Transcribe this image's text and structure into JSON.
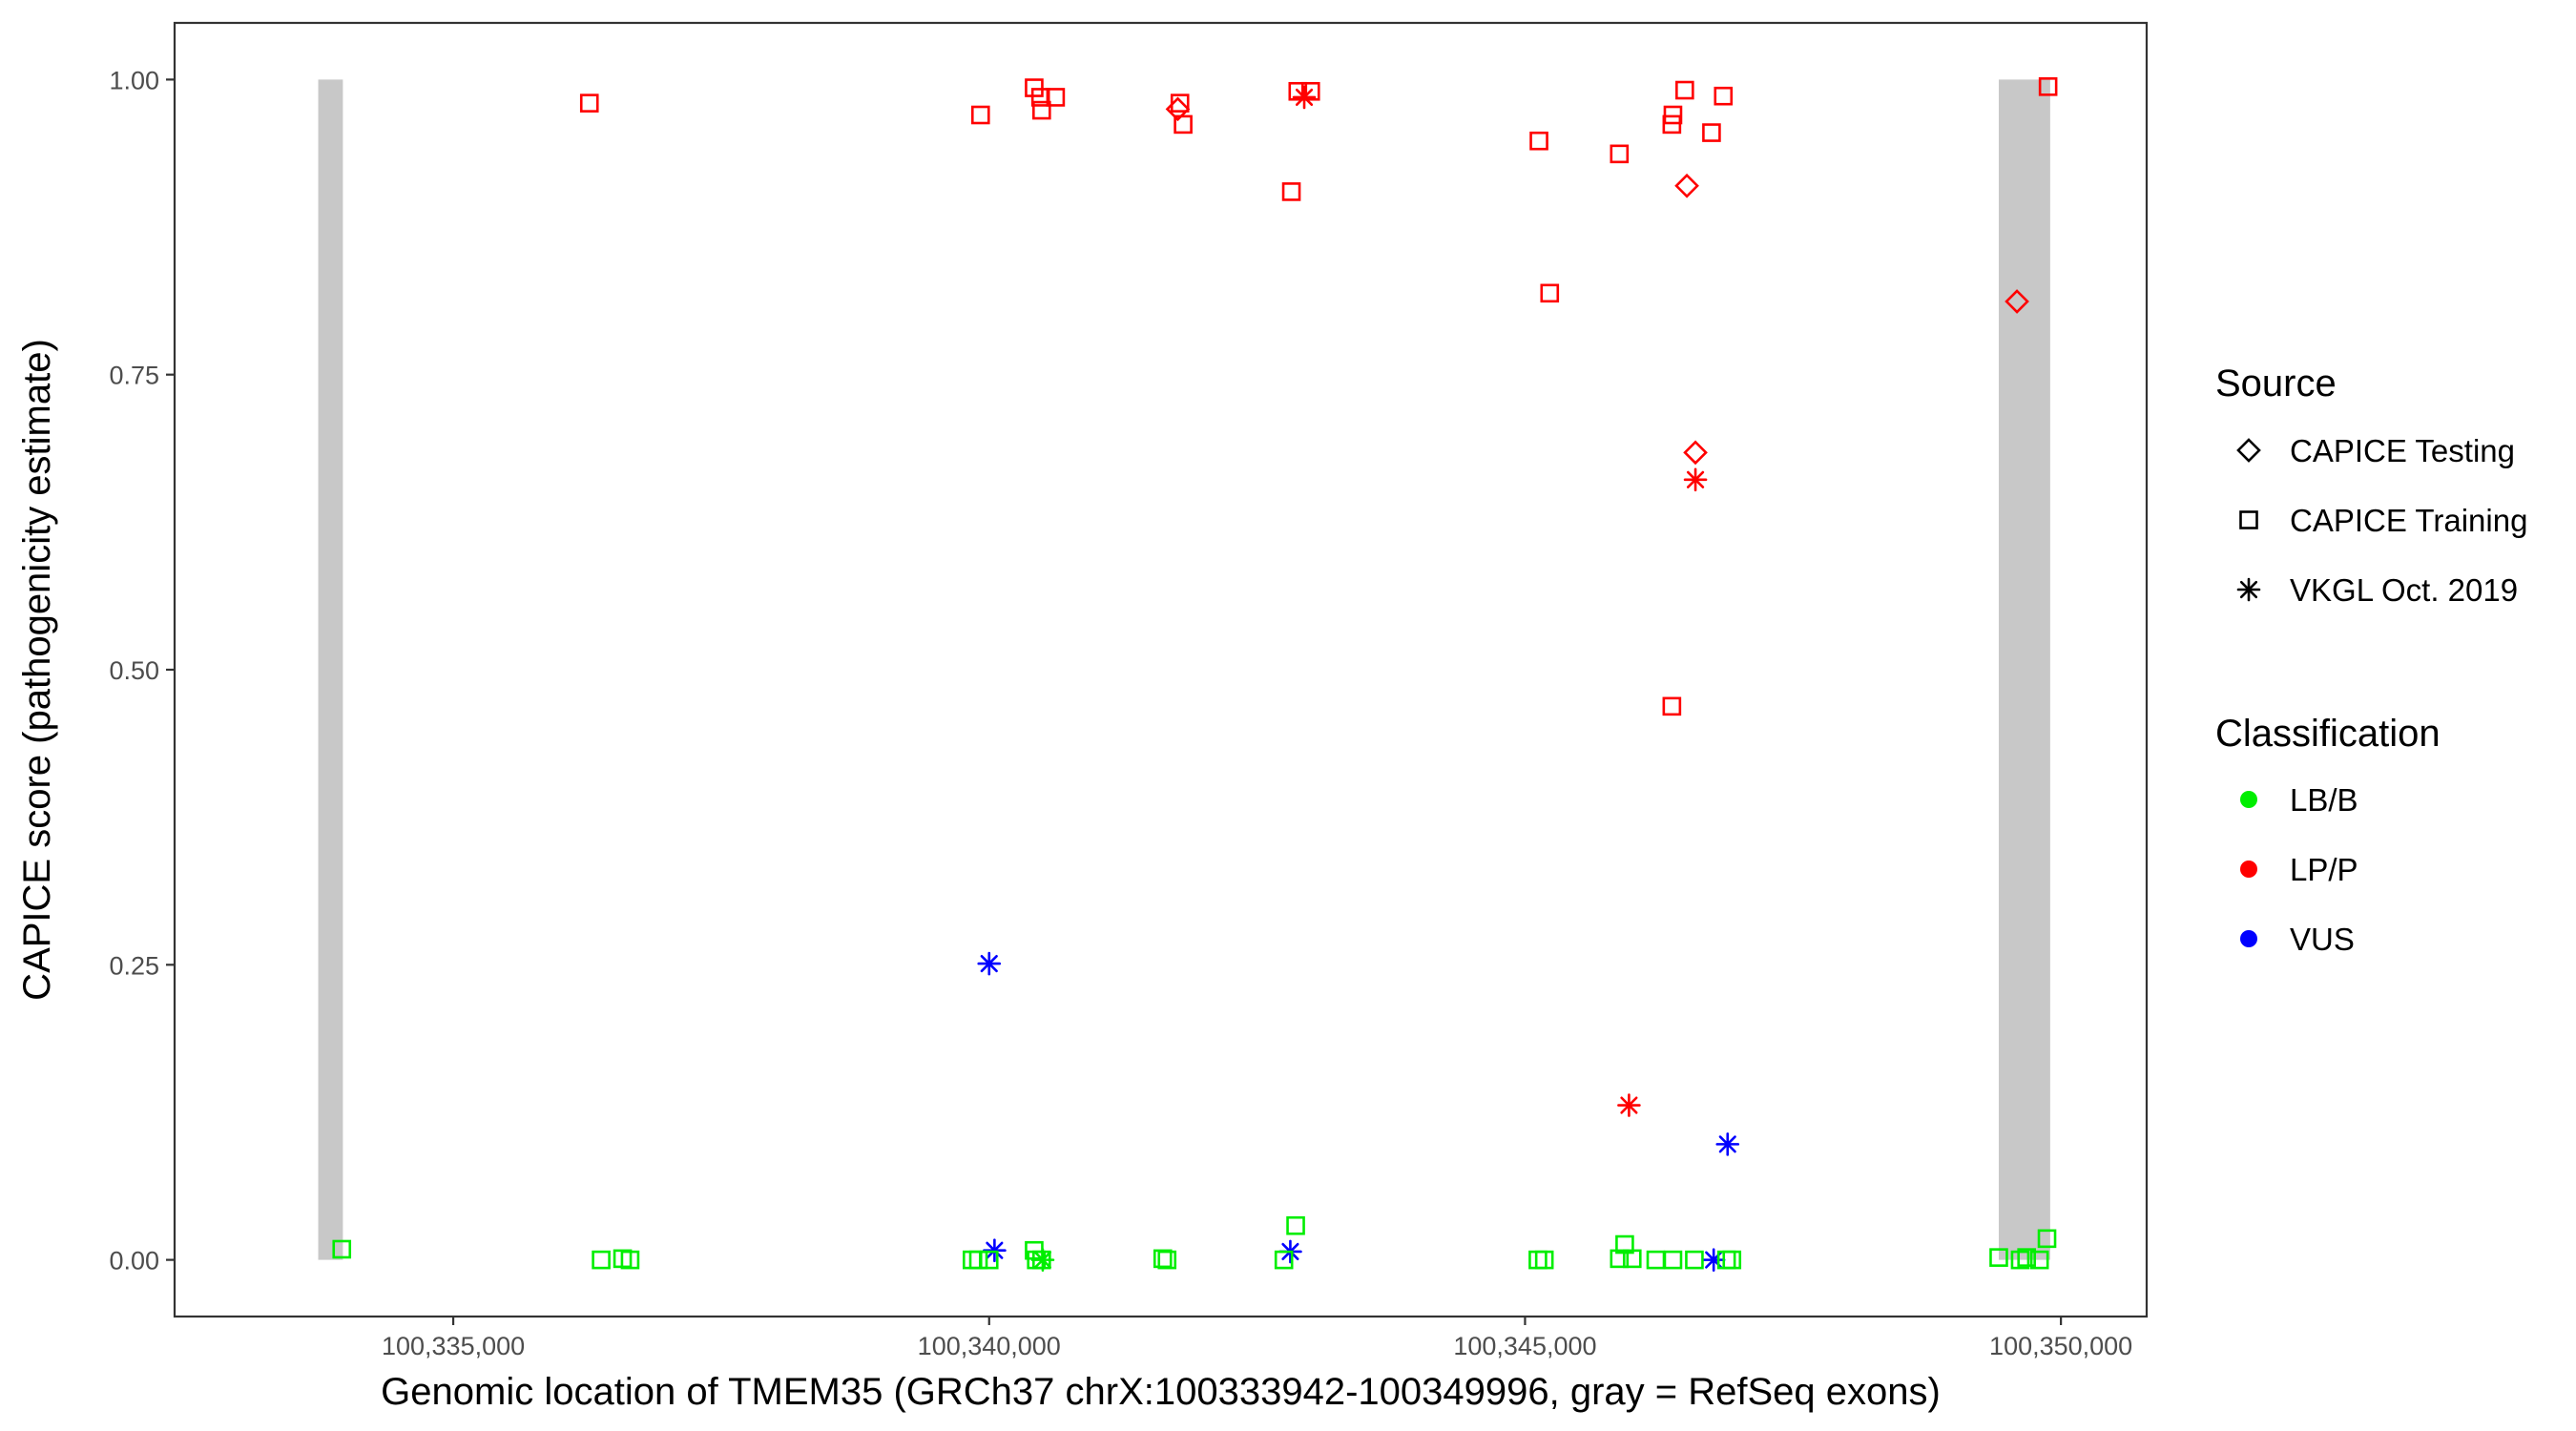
{
  "chart_data": {
    "type": "scatter",
    "xlabel": "Genomic location of TMEM35 (GRCh37 chrX:100333942-100349996, gray = RefSeq exons)",
    "ylabel": "CAPICE score (pathogenicity estimate)",
    "xlim": [
      100332400,
      100350800
    ],
    "ylim": [
      -0.048,
      1.048
    ],
    "x_ticks": [
      100335000,
      100340000,
      100345000,
      100350000
    ],
    "x_tick_labels": [
      "100,335,000",
      "100,340,000",
      "100,345,000",
      "100,350,000"
    ],
    "y_ticks": [
      0,
      0.25,
      0.5,
      0.75,
      1.0
    ],
    "y_tick_labels": [
      "0.00",
      "0.25",
      "0.50",
      "0.75",
      "1.00"
    ],
    "grid": false,
    "exon_color": "#c8c8c8",
    "exons": [
      {
        "start": 100333740,
        "end": 100333970,
        "ymin": 0,
        "ymax": 1
      },
      {
        "start": 100349420,
        "end": 100349900,
        "ymin": 0,
        "ymax": 1
      }
    ],
    "shape_legend": {
      "title": "Source",
      "position": "right",
      "entries": [
        {
          "label": "CAPICE Testing",
          "shape": "diamond"
        },
        {
          "label": "CAPICE Training",
          "shape": "square"
        },
        {
          "label": "VKGL Oct. 2019",
          "shape": "asterisk"
        }
      ]
    },
    "color_legend": {
      "title": "Classification",
      "position": "right",
      "entries": [
        {
          "label": "LB/B",
          "color": "#00ee00"
        },
        {
          "label": "LP/P",
          "color": "#ff0000"
        },
        {
          "label": "VUS",
          "color": "#0000ff"
        }
      ]
    },
    "points": [
      {
        "x": 100336270,
        "y": 0.98,
        "shape": "square",
        "cls": "LP/P"
      },
      {
        "x": 100339920,
        "y": 0.97,
        "shape": "square",
        "cls": "LP/P"
      },
      {
        "x": 100340420,
        "y": 0.993,
        "shape": "square",
        "cls": "LP/P"
      },
      {
        "x": 100340480,
        "y": 0.985,
        "shape": "square",
        "cls": "LP/P"
      },
      {
        "x": 100340490,
        "y": 0.974,
        "shape": "square",
        "cls": "LP/P"
      },
      {
        "x": 100340620,
        "y": 0.985,
        "shape": "square",
        "cls": "LP/P"
      },
      {
        "x": 100341780,
        "y": 0.98,
        "shape": "square",
        "cls": "LP/P"
      },
      {
        "x": 100341760,
        "y": 0.975,
        "shape": "diamond",
        "cls": "LP/P"
      },
      {
        "x": 100341810,
        "y": 0.962,
        "shape": "square",
        "cls": "LP/P"
      },
      {
        "x": 100342880,
        "y": 0.99,
        "shape": "square",
        "cls": "LP/P"
      },
      {
        "x": 100343000,
        "y": 0.99,
        "shape": "square",
        "cls": "LP/P"
      },
      {
        "x": 100342940,
        "y": 0.985,
        "shape": "asterisk",
        "cls": "LP/P"
      },
      {
        "x": 100342820,
        "y": 0.905,
        "shape": "square",
        "cls": "LP/P"
      },
      {
        "x": 100345130,
        "y": 0.948,
        "shape": "square",
        "cls": "LP/P"
      },
      {
        "x": 100345230,
        "y": 0.819,
        "shape": "square",
        "cls": "LP/P"
      },
      {
        "x": 100345880,
        "y": 0.937,
        "shape": "square",
        "cls": "LP/P"
      },
      {
        "x": 100346380,
        "y": 0.97,
        "shape": "square",
        "cls": "LP/P"
      },
      {
        "x": 100346370,
        "y": 0.962,
        "shape": "square",
        "cls": "LP/P"
      },
      {
        "x": 100346490,
        "y": 0.991,
        "shape": "square",
        "cls": "LP/P"
      },
      {
        "x": 100346510,
        "y": 0.91,
        "shape": "diamond",
        "cls": "LP/P"
      },
      {
        "x": 100346740,
        "y": 0.955,
        "shape": "square",
        "cls": "LP/P"
      },
      {
        "x": 100346850,
        "y": 0.986,
        "shape": "square",
        "cls": "LP/P"
      },
      {
        "x": 100349880,
        "y": 0.994,
        "shape": "square",
        "cls": "LP/P"
      },
      {
        "x": 100349590,
        "y": 0.812,
        "shape": "diamond",
        "cls": "LP/P"
      },
      {
        "x": 100346590,
        "y": 0.684,
        "shape": "diamond",
        "cls": "LP/P"
      },
      {
        "x": 100346590,
        "y": 0.661,
        "shape": "asterisk",
        "cls": "LP/P"
      },
      {
        "x": 100346370,
        "y": 0.469,
        "shape": "square",
        "cls": "LP/P"
      },
      {
        "x": 100345970,
        "y": 0.131,
        "shape": "asterisk",
        "cls": "LP/P"
      },
      {
        "x": 100340000,
        "y": 0.251,
        "shape": "asterisk",
        "cls": "VUS"
      },
      {
        "x": 100346890,
        "y": 0.098,
        "shape": "asterisk",
        "cls": "VUS"
      },
      {
        "x": 100340050,
        "y": 0.008,
        "shape": "asterisk",
        "cls": "VUS"
      },
      {
        "x": 100342810,
        "y": 0.007,
        "shape": "asterisk",
        "cls": "VUS"
      },
      {
        "x": 100346760,
        "y": 0.0,
        "shape": "asterisk",
        "cls": "VUS"
      },
      {
        "x": 100333960,
        "y": 0.009,
        "shape": "square",
        "cls": "LB/B"
      },
      {
        "x": 100336380,
        "y": 0.0,
        "shape": "square",
        "cls": "LB/B"
      },
      {
        "x": 100336580,
        "y": 0.001,
        "shape": "square",
        "cls": "LB/B"
      },
      {
        "x": 100336650,
        "y": 0.0,
        "shape": "square",
        "cls": "LB/B"
      },
      {
        "x": 100339840,
        "y": 0.0,
        "shape": "square",
        "cls": "LB/B"
      },
      {
        "x": 100339900,
        "y": 0.0,
        "shape": "square",
        "cls": "LB/B"
      },
      {
        "x": 100340000,
        "y": 0.0,
        "shape": "square",
        "cls": "LB/B"
      },
      {
        "x": 100340420,
        "y": 0.008,
        "shape": "square",
        "cls": "LB/B"
      },
      {
        "x": 100340440,
        "y": 0.0,
        "shape": "square",
        "cls": "LB/B"
      },
      {
        "x": 100340490,
        "y": 0.0,
        "shape": "square",
        "cls": "LB/B"
      },
      {
        "x": 100340500,
        "y": 0.0,
        "shape": "asterisk",
        "cls": "LB/B"
      },
      {
        "x": 100341620,
        "y": 0.001,
        "shape": "square",
        "cls": "LB/B"
      },
      {
        "x": 100341660,
        "y": 0.0,
        "shape": "square",
        "cls": "LB/B"
      },
      {
        "x": 100342750,
        "y": 0.0,
        "shape": "square",
        "cls": "LB/B"
      },
      {
        "x": 100342860,
        "y": 0.029,
        "shape": "square",
        "cls": "LB/B"
      },
      {
        "x": 100345120,
        "y": 0.0,
        "shape": "square",
        "cls": "LB/B"
      },
      {
        "x": 100345180,
        "y": 0.0,
        "shape": "square",
        "cls": "LB/B"
      },
      {
        "x": 100345880,
        "y": 0.001,
        "shape": "square",
        "cls": "LB/B"
      },
      {
        "x": 100345930,
        "y": 0.013,
        "shape": "square",
        "cls": "LB/B"
      },
      {
        "x": 100346000,
        "y": 0.001,
        "shape": "square",
        "cls": "LB/B"
      },
      {
        "x": 100346220,
        "y": 0.0,
        "shape": "square",
        "cls": "LB/B"
      },
      {
        "x": 100346380,
        "y": 0.0,
        "shape": "square",
        "cls": "LB/B"
      },
      {
        "x": 100346580,
        "y": 0.0,
        "shape": "square",
        "cls": "LB/B"
      },
      {
        "x": 100346880,
        "y": 0.0,
        "shape": "square",
        "cls": "LB/B"
      },
      {
        "x": 100346930,
        "y": 0.0,
        "shape": "square",
        "cls": "LB/B"
      },
      {
        "x": 100349420,
        "y": 0.002,
        "shape": "square",
        "cls": "LB/B"
      },
      {
        "x": 100349620,
        "y": 0.0,
        "shape": "square",
        "cls": "LB/B"
      },
      {
        "x": 100349680,
        "y": 0.002,
        "shape": "square",
        "cls": "LB/B"
      },
      {
        "x": 100349800,
        "y": 0.0,
        "shape": "square",
        "cls": "LB/B"
      },
      {
        "x": 100349870,
        "y": 0.018,
        "shape": "square",
        "cls": "LB/B"
      }
    ]
  }
}
